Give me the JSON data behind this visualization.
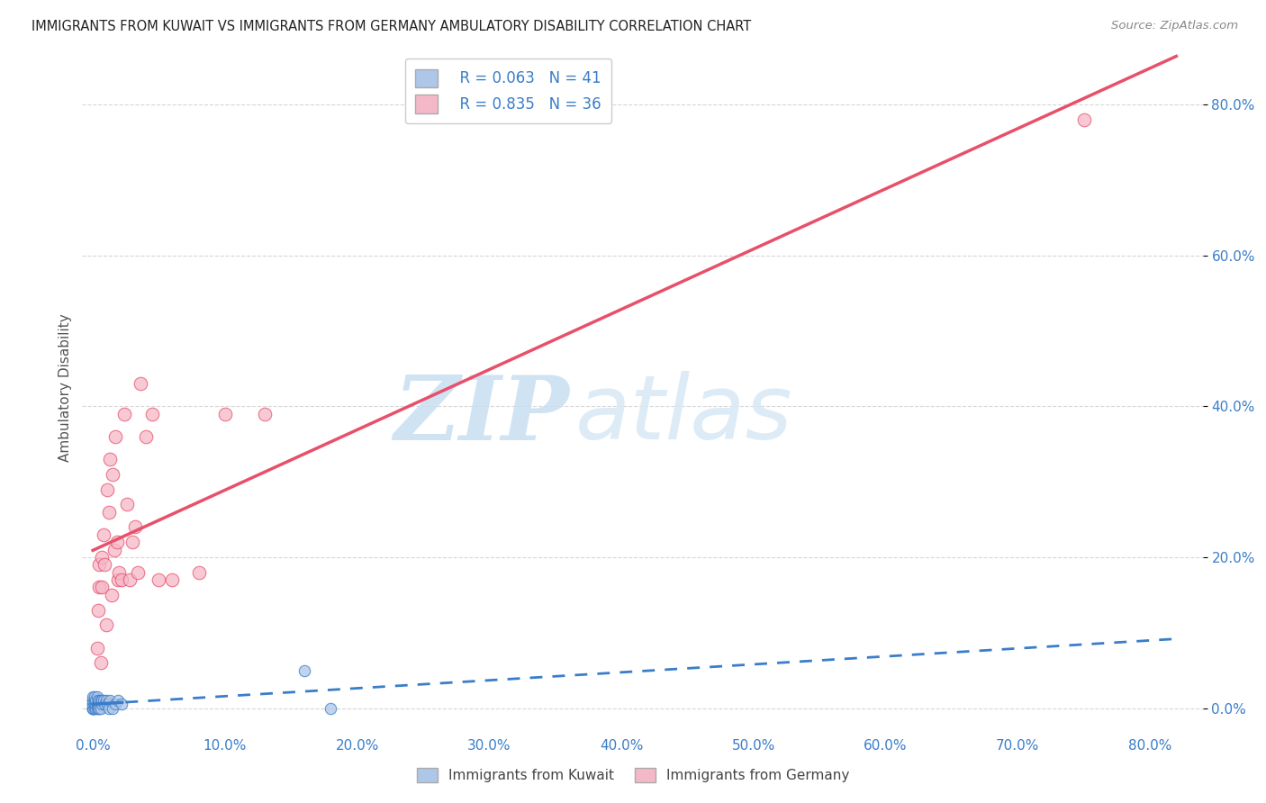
{
  "title": "IMMIGRANTS FROM KUWAIT VS IMMIGRANTS FROM GERMANY AMBULATORY DISABILITY CORRELATION CHART",
  "source": "Source: ZipAtlas.com",
  "ylabel": "Ambulatory Disability",
  "x_ticks": [
    0.0,
    0.1,
    0.2,
    0.3,
    0.4,
    0.5,
    0.6,
    0.7,
    0.8
  ],
  "y_ticks": [
    0.0,
    0.2,
    0.4,
    0.6,
    0.8
  ],
  "xlim": [
    -0.008,
    0.84
  ],
  "ylim": [
    -0.03,
    0.88
  ],
  "kuwait_R": 0.063,
  "kuwait_N": 41,
  "germany_R": 0.835,
  "germany_N": 36,
  "kuwait_color": "#aec6e8",
  "germany_color": "#f5b8c8",
  "kuwait_line_color": "#3a7dc9",
  "germany_line_color": "#e8506a",
  "kuwait_scatter_x": [
    0.0,
    0.0,
    0.0,
    0.0,
    0.0,
    0.0,
    0.0,
    0.0,
    0.0,
    0.0,
    0.001,
    0.001,
    0.001,
    0.001,
    0.002,
    0.002,
    0.002,
    0.003,
    0.003,
    0.003,
    0.004,
    0.004,
    0.004,
    0.005,
    0.005,
    0.006,
    0.006,
    0.007,
    0.007,
    0.008,
    0.009,
    0.01,
    0.011,
    0.012,
    0.013,
    0.015,
    0.017,
    0.019,
    0.022,
    0.16,
    0.18
  ],
  "kuwait_scatter_y": [
    0.0,
    0.0,
    0.0,
    0.0,
    0.0,
    0.005,
    0.005,
    0.01,
    0.01,
    0.015,
    0.0,
    0.005,
    0.01,
    0.015,
    0.0,
    0.005,
    0.01,
    0.0,
    0.005,
    0.015,
    0.0,
    0.005,
    0.01,
    0.0,
    0.01,
    0.0,
    0.01,
    0.005,
    0.01,
    0.01,
    0.005,
    0.01,
    0.005,
    0.0,
    0.01,
    0.0,
    0.005,
    0.01,
    0.005,
    0.05,
    0.0
  ],
  "germany_scatter_x": [
    0.003,
    0.004,
    0.005,
    0.005,
    0.006,
    0.007,
    0.007,
    0.008,
    0.009,
    0.01,
    0.011,
    0.012,
    0.013,
    0.014,
    0.015,
    0.016,
    0.017,
    0.018,
    0.019,
    0.02,
    0.022,
    0.024,
    0.026,
    0.028,
    0.03,
    0.032,
    0.034,
    0.036,
    0.04,
    0.045,
    0.05,
    0.06,
    0.08,
    0.1,
    0.13,
    0.75
  ],
  "germany_scatter_y": [
    0.08,
    0.13,
    0.16,
    0.19,
    0.06,
    0.16,
    0.2,
    0.23,
    0.19,
    0.11,
    0.29,
    0.26,
    0.33,
    0.15,
    0.31,
    0.21,
    0.36,
    0.22,
    0.17,
    0.18,
    0.17,
    0.39,
    0.27,
    0.17,
    0.22,
    0.24,
    0.18,
    0.43,
    0.36,
    0.39,
    0.17,
    0.17,
    0.18,
    0.39,
    0.39,
    0.78
  ],
  "watermark_zip": "ZIP",
  "watermark_atlas": "atlas",
  "legend_label_kuwait": "Immigrants from Kuwait",
  "legend_label_germany": "Immigrants from Germany",
  "background_color": "#ffffff",
  "grid_color": "#cccccc",
  "title_color": "#222222",
  "tick_label_color": "#3a7dc9"
}
